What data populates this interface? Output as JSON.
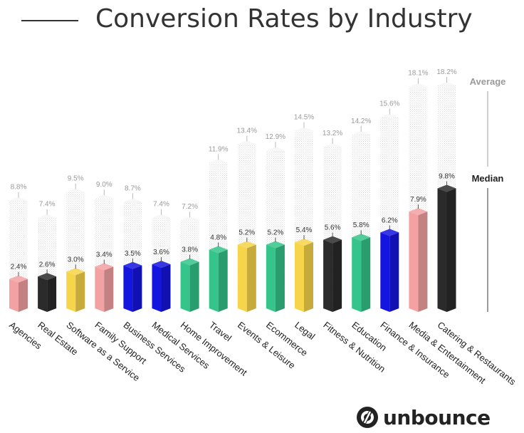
{
  "title": "Conversion Rates by Industry",
  "legend": {
    "average": "Average",
    "median": "Median"
  },
  "brand": {
    "name": "unbounce",
    "logo_icon": "unbounce-logo-icon"
  },
  "colors": {
    "pink": "#f4a1a3",
    "black": "#2b2b2b",
    "yellow": "#f7d54a",
    "blue": "#1515e0",
    "green": "#35c48a",
    "average_bar": "#f2f2f2",
    "average_text": "#9a9a9a"
  },
  "chart_data": {
    "type": "bar",
    "title": "Conversion Rates by Industry",
    "categories": [
      "Agencies",
      "Real Estate",
      "Software as a Service",
      "Family Support",
      "Business Services",
      "Medical Services",
      "Home Improvement",
      "Travel",
      "Events & Leisure",
      "Ecommerce",
      "Legal",
      "Fitness & Nutrition",
      "Education",
      "Finance & Insurance",
      "Media & Entertainment",
      "Catering & Restaurants"
    ],
    "series": [
      {
        "name": "Median",
        "values": [
          2.4,
          2.6,
          3.0,
          3.4,
          3.5,
          3.6,
          3.8,
          4.8,
          5.2,
          5.2,
          5.4,
          5.6,
          5.8,
          6.2,
          7.9,
          9.8
        ],
        "labels": [
          "2.4%",
          "2.6%",
          "3.0%",
          "3.4%",
          "3.5%",
          "3.6%",
          "3.8%",
          "4.8%",
          "5.2%",
          "5.2%",
          "5.4%",
          "5.6%",
          "5.8%",
          "6.2%",
          "7.9%",
          "9.8%"
        ]
      },
      {
        "name": "Average",
        "values": [
          8.8,
          7.4,
          9.5,
          9.0,
          8.7,
          7.4,
          7.2,
          11.9,
          13.4,
          12.9,
          14.5,
          13.2,
          14.2,
          15.6,
          18.1,
          18.2
        ],
        "labels": [
          "8.8%",
          "7.4%",
          "9.5%",
          "9.0%",
          "8.7%",
          "7.4%",
          "7.2%",
          "11.9%",
          "13.4%",
          "12.9%",
          "14.5%",
          "13.2%",
          "14.2%",
          "15.6%",
          "18.1%",
          "18.2%"
        ]
      }
    ],
    "bar_colors": [
      "pink",
      "black",
      "yellow",
      "pink",
      "blue",
      "blue",
      "green",
      "green",
      "yellow",
      "green",
      "yellow",
      "black",
      "green",
      "blue",
      "pink",
      "black"
    ],
    "ylim": [
      0,
      18.2
    ],
    "legend": "right",
    "grid": false
  }
}
